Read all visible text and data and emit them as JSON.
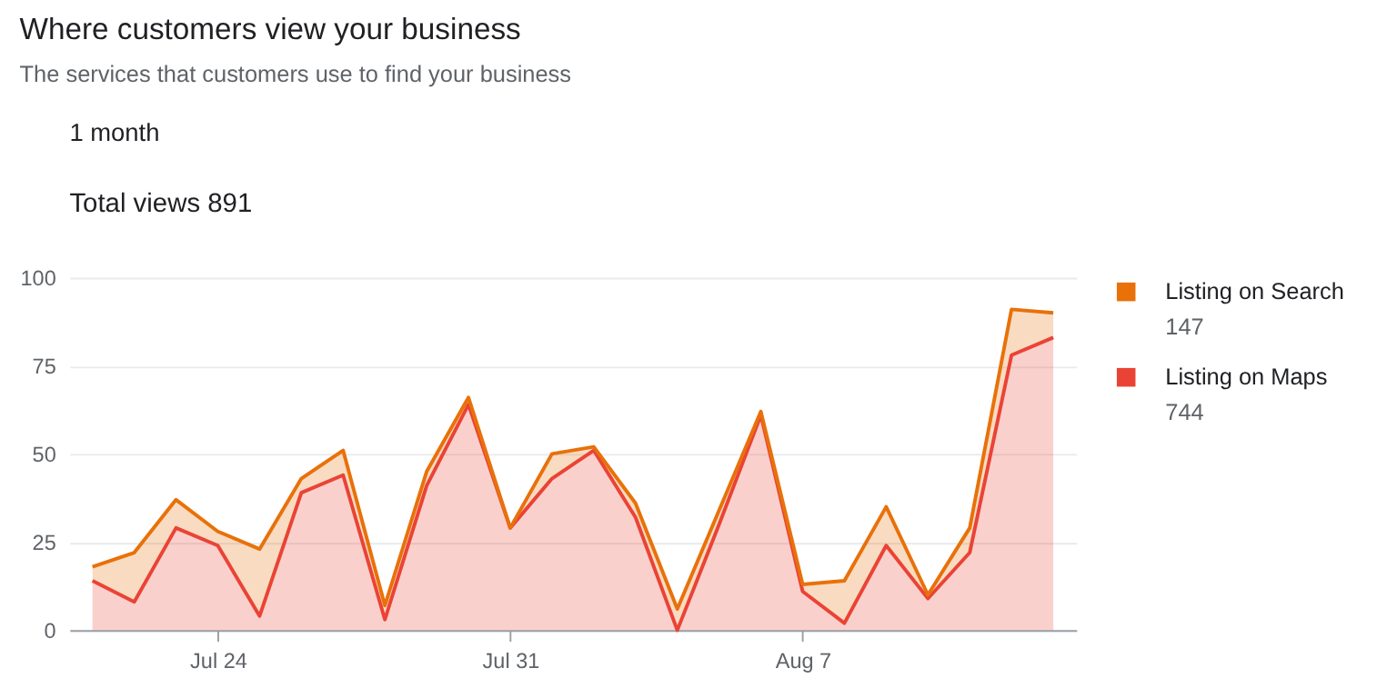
{
  "chart_data": {
    "type": "area",
    "title": "Where customers view your business",
    "subtitle": "The services that customers use to find your business",
    "annotations": [
      "1 month",
      "Total views 891",
      "147",
      "744"
    ],
    "categories": [
      null,
      null,
      null,
      "Jul 24",
      null,
      null,
      null,
      null,
      null,
      null,
      "Jul 31",
      null,
      null,
      null,
      null,
      null,
      null,
      "Aug 7",
      null,
      null,
      null,
      null,
      null,
      null
    ],
    "stacked": true,
    "series": [
      {
        "name": "Listing on Maps",
        "color": "#ea4335",
        "values": [
          14,
          8,
          29,
          24,
          4,
          39,
          44,
          3,
          41,
          64,
          29,
          43,
          51,
          32,
          0,
          30,
          61,
          11,
          2,
          24,
          9,
          22,
          78,
          83
        ]
      },
      {
        "name": "Listing on Search",
        "color": "#e8710a",
        "values": [
          4,
          14,
          8,
          4,
          19,
          4,
          7,
          4,
          4,
          2,
          0,
          7,
          1,
          4,
          6,
          4,
          1,
          2,
          12,
          11,
          1,
          7,
          13,
          7
        ]
      }
    ],
    "ylim": [
      0,
      100
    ],
    "yticks": [
      0,
      25,
      50,
      75,
      100
    ],
    "grid": "y",
    "legend": "right"
  }
}
